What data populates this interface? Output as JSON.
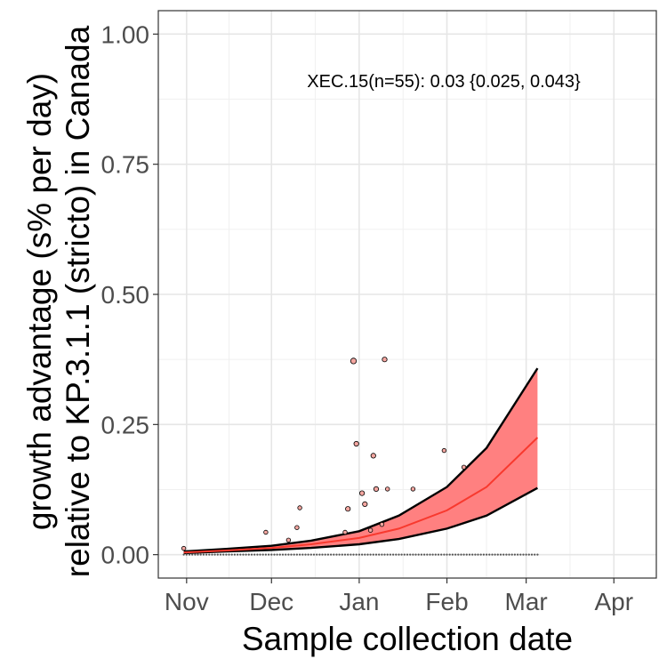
{
  "chart_data": {
    "type": "scatter",
    "xlabel": "Sample collection date",
    "ylabel_lines": [
      "growth advantage (s% per day)",
      "relative to KP.3.1.1 (stricto) in Canada"
    ],
    "annotation": "XEC.15(n=55): 0.03 {0.025, 0.043}",
    "x_ticks": [
      {
        "label": "Nov",
        "date": "2024-11-01"
      },
      {
        "label": "Dec",
        "date": "2024-12-01"
      },
      {
        "label": "Jan",
        "date": "2025-01-01"
      },
      {
        "label": "Feb",
        "date": "2025-02-01"
      },
      {
        "label": "Mar",
        "date": "2025-03-01"
      },
      {
        "label": "Apr",
        "date": "2025-04-01"
      }
    ],
    "xlim": [
      "2024-10-22",
      "2025-04-16"
    ],
    "ylim": [
      -0.045,
      1.045
    ],
    "y_ticks": [
      0.0,
      0.25,
      0.5,
      0.75,
      1.0
    ],
    "y_tick_labels": [
      "0.00",
      "0.25",
      "0.50",
      "0.75",
      "1.00"
    ],
    "grid": true,
    "colors": {
      "fit_line": "#f8392e",
      "ribbon_fill": "#ff8080",
      "ribbon_edge": "#000000",
      "points_fill": "#f4a6a0",
      "points_edge": "#000000"
    },
    "fit": {
      "dates": [
        "2024-10-31",
        "2024-11-15",
        "2024-12-01",
        "2024-12-15",
        "2025-01-01",
        "2025-01-15",
        "2025-02-01",
        "2025-02-15",
        "2025-03-05"
      ],
      "mid": [
        0.004,
        0.008,
        0.013,
        0.02,
        0.032,
        0.05,
        0.085,
        0.13,
        0.225
      ],
      "lower": [
        0.003,
        0.006,
        0.009,
        0.013,
        0.02,
        0.03,
        0.05,
        0.075,
        0.128
      ],
      "upper": [
        0.006,
        0.011,
        0.017,
        0.027,
        0.045,
        0.075,
        0.13,
        0.205,
        0.358
      ]
    },
    "points": [
      {
        "date": "2024-10-31",
        "value": 0.012,
        "n": 1
      },
      {
        "date": "2024-11-29",
        "value": 0.043,
        "n": 1
      },
      {
        "date": "2024-12-07",
        "value": 0.028,
        "n": 1
      },
      {
        "date": "2024-12-10",
        "value": 0.052,
        "n": 1
      },
      {
        "date": "2024-12-11",
        "value": 0.09,
        "n": 1
      },
      {
        "date": "2024-12-27",
        "value": 0.043,
        "n": 1
      },
      {
        "date": "2024-12-28",
        "value": 0.088,
        "n": 2
      },
      {
        "date": "2024-12-30",
        "value": 0.372,
        "n": 4
      },
      {
        "date": "2024-12-31",
        "value": 0.213,
        "n": 2
      },
      {
        "date": "2025-01-02",
        "value": 0.118,
        "n": 2
      },
      {
        "date": "2025-01-03",
        "value": 0.097,
        "n": 2
      },
      {
        "date": "2025-01-05",
        "value": 0.047,
        "n": 1
      },
      {
        "date": "2025-01-06",
        "value": 0.19,
        "n": 2
      },
      {
        "date": "2025-01-07",
        "value": 0.126,
        "n": 2
      },
      {
        "date": "2025-01-09",
        "value": 0.058,
        "n": 1
      },
      {
        "date": "2025-01-10",
        "value": 0.375,
        "n": 2
      },
      {
        "date": "2025-01-11",
        "value": 0.126,
        "n": 1
      },
      {
        "date": "2025-01-20",
        "value": 0.126,
        "n": 1
      },
      {
        "date": "2025-01-31",
        "value": 0.2,
        "n": 1
      },
      {
        "date": "2025-02-07",
        "value": 0.168,
        "n": 1
      }
    ],
    "zero_range": [
      "2024-10-31",
      "2025-03-05"
    ]
  }
}
